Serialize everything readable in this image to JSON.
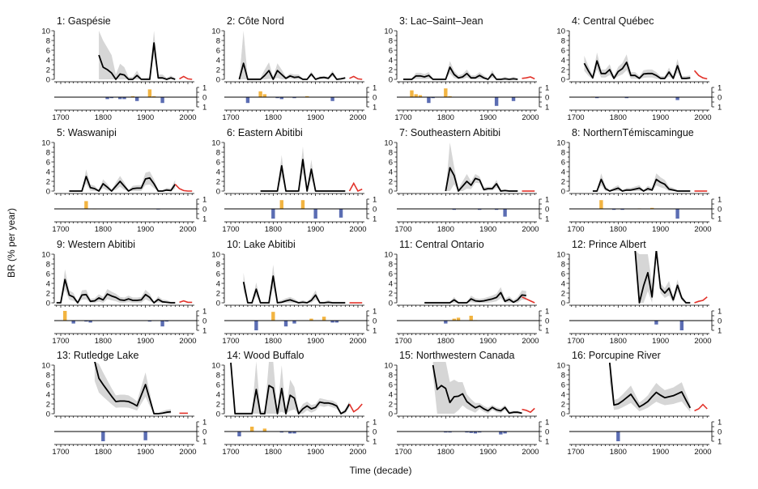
{
  "chart_data": {
    "type": "line",
    "ylabel": "BR (% per year)",
    "xlabel": "Time (decade)",
    "ylim": [
      0,
      10
    ],
    "xlim": [
      1690,
      2010
    ],
    "y_ticks": [
      "0",
      "2",
      "4",
      "6",
      "8",
      "10"
    ],
    "x_ticks": [
      "1700",
      "1800",
      "1900",
      "2000"
    ],
    "bar_ticks": [
      "1",
      "0",
      "1"
    ],
    "colors": {
      "band": "#d6d6d6",
      "line": "#000000",
      "recent": "#e2332b",
      "positive": "#f2b441",
      "negative": "#5b6db3"
    },
    "panels": [
      {
        "title": "1: Gaspésie",
        "start": 1790,
        "values": [
          5,
          2.5,
          2,
          1.3,
          0,
          1.1,
          0.9,
          0,
          0,
          0.8,
          0,
          0,
          0,
          7.5,
          0.3,
          0.3,
          0,
          0.3,
          0
        ],
        "band_hi": [
          10,
          8,
          6.5,
          5,
          1,
          3.2,
          2.5,
          0.5,
          0.5,
          1.8,
          0.3,
          0.3,
          0.5,
          10,
          1,
          1,
          0.3,
          0.8,
          0.2
        ],
        "recent_start": 1980,
        "recent": [
          0.1,
          0.6,
          0.1,
          0
        ],
        "bars": [
          [
            1810,
            -0.2
          ],
          [
            1820,
            -0.1
          ],
          [
            1840,
            -0.2
          ],
          [
            1850,
            -0.2
          ],
          [
            1870,
            0.1
          ],
          [
            1880,
            -0.4
          ],
          [
            1910,
            0.8
          ],
          [
            1920,
            0.1
          ],
          [
            1940,
            -0.6
          ]
        ]
      },
      {
        "title": "2: Côte Nord",
        "start": 1720,
        "values": [
          0,
          3.3,
          0,
          0,
          0,
          0,
          0.8,
          1.8,
          0,
          1.8,
          1,
          0.2,
          0.7,
          0.4,
          0.5,
          0,
          0,
          1.1,
          0,
          0.3,
          0.4,
          0.2,
          1.2,
          0,
          0.1,
          0.3
        ],
        "band_hi": [
          0,
          10,
          0.3,
          0.3,
          0.3,
          0.3,
          2,
          3.5,
          0.5,
          3.3,
          2,
          0.5,
          1.2,
          1,
          1,
          0.2,
          0.2,
          1.6,
          0.2,
          0.6,
          0.7,
          0.5,
          1.8,
          0.2,
          0.3,
          0.5
        ],
        "recent_start": 1980,
        "recent": [
          0.2,
          0.6,
          0.1,
          0
        ],
        "bars": [
          [
            1740,
            -0.6
          ],
          [
            1770,
            0.6
          ],
          [
            1780,
            0.3
          ],
          [
            1810,
            -0.1
          ],
          [
            1820,
            -0.2
          ],
          [
            1850,
            -0.1
          ],
          [
            1880,
            0.1
          ],
          [
            1940,
            -0.4
          ]
        ]
      },
      {
        "title": "3: Lac–Saint–Jean",
        "start": 1700,
        "values": [
          0,
          0,
          0,
          0.7,
          0.7,
          0.5,
          0.8,
          0,
          0,
          0,
          0,
          2.5,
          1,
          0.3,
          0.5,
          1.2,
          0.3,
          0.3,
          0.8,
          0.3,
          0,
          1.1,
          0,
          0,
          0.1,
          0,
          0.1,
          0
        ],
        "recent_start": 1980,
        "recent": [
          0.2,
          0.3,
          0.5,
          0.1
        ],
        "bars": [
          [
            1720,
            0.7
          ],
          [
            1730,
            0.3
          ],
          [
            1740,
            0.2
          ],
          [
            1760,
            -0.6
          ],
          [
            1770,
            -0.1
          ],
          [
            1800,
            0.9
          ],
          [
            1810,
            0.1
          ],
          [
            1920,
            -0.9
          ],
          [
            1960,
            -0.4
          ]
        ]
      },
      {
        "title": "4: Central Québec",
        "start": 1720,
        "values": [
          3.3,
          1.7,
          0.3,
          3.8,
          1.2,
          1.2,
          2,
          0.2,
          1.6,
          2.2,
          3.5,
          0.8,
          0.8,
          0.2,
          1.1,
          1.2,
          1.2,
          0.8,
          0.2,
          0.2,
          1.5,
          0.2,
          2.8,
          0.2,
          0.2,
          0.3
        ],
        "recent_start": 1980,
        "recent": [
          1.8,
          0.8,
          0.3,
          0.1
        ],
        "bars": [
          [
            1740,
            0.05
          ],
          [
            1750,
            -0.1
          ],
          [
            1820,
            -0.1
          ],
          [
            1940,
            -0.3
          ]
        ]
      },
      {
        "title": "5: Waswanipi",
        "start": 1720,
        "values": [
          0,
          0,
          0,
          0,
          3,
          0.7,
          0.5,
          0,
          1.5,
          0.8,
          0,
          1,
          2,
          1,
          0,
          0.5,
          0.6,
          0.6,
          2.5,
          2.7,
          1.5,
          0,
          0,
          0.2,
          0.1,
          1.4
        ],
        "recent_start": 1970,
        "recent": [
          1.4,
          0.5,
          0.1,
          0,
          0
        ],
        "bars": [
          [
            1760,
            0.8
          ],
          [
            1780,
            0.02
          ],
          [
            1930,
            -0.05
          ]
        ]
      },
      {
        "title": "6: Eastern Abitibi",
        "start": 1770,
        "values": [
          0,
          0,
          0,
          0,
          0,
          5.2,
          0,
          0,
          0,
          0,
          6.5,
          0,
          4.5,
          0,
          0,
          0,
          0,
          0,
          0,
          0,
          0
        ],
        "recent_start": 1980,
        "recent": [
          0,
          1.6,
          0,
          0.4
        ],
        "bars": [
          [
            1800,
            -1
          ],
          [
            1820,
            0.9
          ],
          [
            1870,
            0.9
          ],
          [
            1900,
            -1
          ],
          [
            1960,
            -0.9
          ]
        ]
      },
      {
        "title": "7: Southeastern Abitibi",
        "start": 1800,
        "values": [
          0,
          4.8,
          3.2,
          0,
          1,
          2,
          1.2,
          2.6,
          2.3,
          0.3,
          0.5,
          0.5,
          1.5,
          0,
          0.1,
          0,
          0,
          0
        ],
        "band_hi": [
          0,
          10,
          5,
          0.5,
          2,
          3.5,
          2,
          3.5,
          3,
          0.8,
          0.9,
          0.9,
          2.3,
          0.3,
          0.3,
          0.2,
          0.2,
          0.2
        ],
        "recent_start": 1980,
        "recent": [
          0,
          0,
          0,
          0
        ],
        "bars": [
          [
            1820,
            -0.1
          ],
          [
            1880,
            -0.1
          ],
          [
            1920,
            -0.1
          ],
          [
            1940,
            -0.8
          ]
        ]
      },
      {
        "title": "8: NorthernTémiscamingue",
        "start": 1740,
        "values": [
          0,
          0,
          2.4,
          0.5,
          0,
          0.3,
          0.6,
          0,
          0.2,
          0.2,
          0.4,
          0.6,
          0,
          0.5,
          0.2,
          2.4,
          1.8,
          1.4,
          0.4,
          0.2,
          0,
          0,
          0,
          0
        ],
        "recent_start": 1980,
        "recent": [
          0,
          0,
          0,
          0
        ],
        "bars": [
          [
            1760,
            0.9
          ],
          [
            1790,
            -0.1
          ],
          [
            1810,
            -0.1
          ],
          [
            1850,
            0.05
          ],
          [
            1880,
            0.1
          ],
          [
            1940,
            -1
          ]
        ]
      },
      {
        "title": "9: Western Abitibi",
        "start": 1690,
        "values": [
          0,
          0,
          4.8,
          1.6,
          1.2,
          0,
          1.6,
          1.7,
          0.3,
          0.4,
          1,
          0.6,
          1.8,
          1.4,
          1.1,
          0.6,
          0.5,
          0.8,
          0.5,
          0.5,
          0.6,
          1.7,
          1.1,
          0,
          0.7,
          0.2,
          0.1,
          0,
          0
        ],
        "recent_start": 1980,
        "recent": [
          0.1,
          0.4,
          0.1,
          0.1
        ],
        "bars": [
          [
            1710,
            1
          ],
          [
            1730,
            -0.3
          ],
          [
            1760,
            -0.1
          ],
          [
            1770,
            -0.2
          ],
          [
            1910,
            -0.1
          ],
          [
            1940,
            -0.6
          ],
          [
            1950,
            -0.1
          ]
        ]
      },
      {
        "title": "10: Lake Abitibi",
        "start": 1730,
        "values": [
          4.3,
          0,
          0,
          2.8,
          0,
          0,
          0,
          5.5,
          0,
          0.1,
          0.4,
          0.6,
          0.3,
          0,
          0.1,
          0,
          0.5,
          1.6,
          0,
          0,
          0.1,
          0,
          0,
          0,
          0
        ],
        "recent_start": 1980,
        "recent": [
          0,
          0,
          0,
          0
        ],
        "bars": [
          [
            1760,
            -1
          ],
          [
            1800,
            0.9
          ],
          [
            1830,
            -0.6
          ],
          [
            1850,
            -0.3
          ],
          [
            1890,
            0.2
          ],
          [
            1920,
            0.4
          ],
          [
            1940,
            -0.2
          ],
          [
            1950,
            -0.2
          ]
        ]
      },
      {
        "title": "11: Central Ontario",
        "start": 1750,
        "values": [
          0,
          0,
          0,
          0,
          0,
          0,
          0,
          0.6,
          0,
          0,
          0,
          0.8,
          0.4,
          0.3,
          0.4,
          0.6,
          0.8,
          1.1,
          2.1,
          0.3,
          0.7,
          0.1,
          0.6,
          1.6,
          1.5
        ],
        "recent_start": 1980,
        "recent": [
          1.2,
          0.8,
          0.4,
          0
        ],
        "bars": [
          [
            1800,
            -0.3
          ],
          [
            1820,
            0.2
          ],
          [
            1830,
            0.3
          ],
          [
            1860,
            0.5
          ],
          [
            1870,
            0.05
          ]
        ]
      },
      {
        "title": "12: Prince Albert",
        "start": 1840,
        "values": [
          12,
          0,
          3.5,
          6.2,
          1.2,
          12,
          3,
          2,
          3,
          0.6,
          3.6,
          1,
          0,
          0
        ],
        "band_hi": [
          12,
          10,
          10,
          10,
          4,
          12,
          4,
          3,
          4.5,
          1.2,
          4.8,
          1.5,
          0.2,
          0.2
        ],
        "recent_start": 1980,
        "recent": [
          0,
          0.3,
          0.5,
          1.2
        ],
        "bars": [
          [
            1890,
            -0.4
          ],
          [
            1950,
            -1
          ]
        ]
      },
      {
        "title": "13: Rutledge Lake",
        "start": 1780,
        "values": [
          11,
          7.3,
          6,
          4.8,
          3.6,
          2.5,
          2.6,
          2.6,
          2.5,
          2.1,
          1.6,
          3.8,
          6,
          3,
          0,
          0,
          0.1,
          0.3,
          0.4
        ],
        "recent_start": 1980,
        "recent": [
          0.1,
          0.1,
          0.1
        ],
        "bars": [
          [
            1800,
            -1
          ],
          [
            1900,
            -0.9
          ]
        ]
      },
      {
        "title": "14: Wood Buffalo",
        "start": 1700,
        "values": [
          10.5,
          0,
          0,
          0,
          0,
          0,
          5,
          0,
          0,
          5.8,
          5.3,
          0,
          5.2,
          0,
          3.8,
          3.2,
          0,
          1,
          1.6,
          1,
          1.3,
          2.4,
          2.2,
          2.2,
          2,
          1.6,
          0,
          0.5,
          2
        ],
        "band_hi": [
          10.5,
          0.3,
          0.3,
          0.3,
          0.3,
          0.3,
          12,
          0.5,
          0.5,
          12,
          12,
          0.5,
          10,
          0.5,
          7,
          5.5,
          0.5,
          2,
          2.5,
          1.8,
          2,
          3.2,
          3,
          2.8,
          2.7,
          2.2,
          0.3,
          1,
          2.6
        ],
        "recent_start": 1980,
        "recent": [
          2,
          0.4,
          1,
          2
        ],
        "bars": [
          [
            1720,
            -0.5
          ],
          [
            1750,
            0.5
          ],
          [
            1780,
            0.3
          ],
          [
            1820,
            -0.1
          ],
          [
            1840,
            -0.2
          ],
          [
            1850,
            -0.2
          ]
        ]
      },
      {
        "title": "15: Northwestern Canada",
        "start": 1770,
        "values": [
          10,
          5,
          5.8,
          5.2,
          2.3,
          3.5,
          3.6,
          4.1,
          2.5,
          1.8,
          1.2,
          1.6,
          1,
          0.6,
          1.3,
          0.8,
          0.6,
          1.3,
          0.1,
          0.3,
          0.3,
          0.1
        ],
        "band_hi": [
          12,
          12,
          12,
          12,
          6.5,
          7,
          6.5,
          6.5,
          4,
          3,
          2.2,
          2.2,
          1.6,
          1.2,
          1.8,
          1.3,
          1.1,
          1.8,
          0.5,
          0.6,
          0.6,
          0.3
        ],
        "recent_start": 1980,
        "recent": [
          0.9,
          0.7,
          0.3,
          1.1
        ],
        "bars": [
          [
            1800,
            -0.1
          ],
          [
            1810,
            -0.1
          ],
          [
            1850,
            -0.1
          ],
          [
            1860,
            -0.15
          ],
          [
            1870,
            -0.2
          ],
          [
            1880,
            -0.1
          ],
          [
            1930,
            -0.3
          ],
          [
            1940,
            -0.2
          ]
        ]
      },
      {
        "title": "16: Porcupine River",
        "start": 1780,
        "values": [
          10.5,
          1.8,
          2,
          2.6,
          3.3,
          4,
          2.7,
          1.4,
          1.9,
          2.5,
          3.5,
          4.4,
          3.8,
          3.3,
          3.5,
          3.7,
          4.1,
          4.5,
          2.8,
          1.2
        ],
        "recent_start": 1980,
        "recent": [
          0.6,
          1,
          1.9,
          1
        ],
        "bars": [
          [
            1800,
            -1
          ]
        ]
      }
    ]
  }
}
